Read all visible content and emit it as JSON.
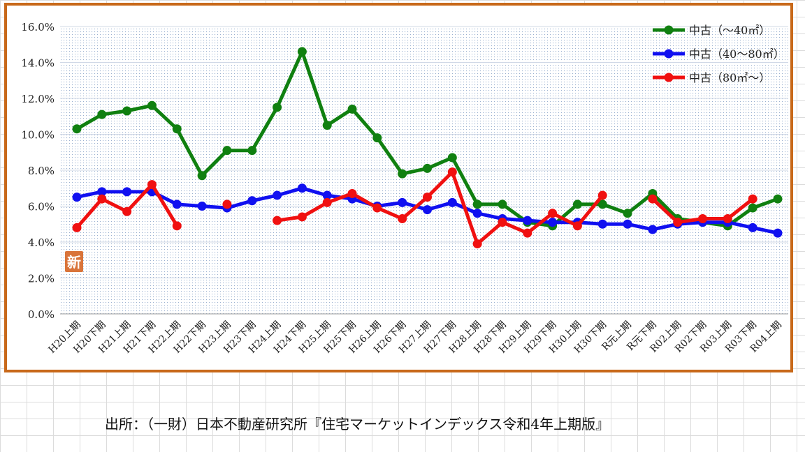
{
  "chart_data": {
    "type": "line",
    "x": [
      "H20上期",
      "H20下期",
      "H21上期",
      "H21下期",
      "H22上期",
      "H22下期",
      "H23上期",
      "H23下期",
      "H24上期",
      "H24下期",
      "H25上期",
      "H25下期",
      "H26上期",
      "H26下期",
      "H27上期",
      "H27下期",
      "H28上期",
      "H28下期",
      "H29上期",
      "H29下期",
      "H30上期",
      "H30下期",
      "R元上期",
      "R元下期",
      "R02上期",
      "R02下期",
      "R03上期",
      "R03下期",
      "R04上期"
    ],
    "ylim": [
      0,
      16
    ],
    "yticks": [
      "0.0%",
      "2.0%",
      "4.0%",
      "6.0%",
      "8.0%",
      "10.0%",
      "12.0%",
      "14.0%",
      "16.0%"
    ],
    "legend_position": "top-right",
    "series": [
      {
        "name": "中古（～40㎡）",
        "color": "#108010",
        "values": [
          10.3,
          11.1,
          11.3,
          11.6,
          10.3,
          7.7,
          9.1,
          9.1,
          11.5,
          14.6,
          10.5,
          11.4,
          9.8,
          7.8,
          8.1,
          8.7,
          6.1,
          6.1,
          5.1,
          4.9,
          6.1,
          6.1,
          5.6,
          6.7,
          5.3,
          5.1,
          4.9,
          5.9,
          6.4
        ]
      },
      {
        "name": "中古（40～80㎡）",
        "color": "#1010f0",
        "values": [
          6.5,
          6.8,
          6.8,
          6.8,
          6.1,
          6.0,
          5.9,
          6.3,
          6.6,
          7.0,
          6.6,
          6.4,
          6.0,
          6.2,
          5.8,
          6.2,
          5.6,
          5.3,
          5.2,
          5.1,
          5.1,
          5.0,
          5.0,
          4.7,
          5.0,
          5.1,
          5.1,
          4.8,
          4.5
        ]
      },
      {
        "name": "中古（80㎡～）",
        "color": "#f01010",
        "values": [
          4.8,
          6.4,
          5.7,
          7.2,
          4.9,
          null,
          6.1,
          null,
          5.2,
          5.4,
          6.2,
          6.7,
          5.9,
          5.3,
          6.5,
          7.9,
          3.9,
          5.1,
          4.5,
          5.6,
          4.9,
          6.6,
          null,
          6.4,
          5.1,
          5.3,
          5.3,
          6.4,
          null
        ]
      }
    ]
  },
  "badge": {
    "text": "新",
    "color": "#d9743a"
  },
  "source_note": "出所：（一財）日本不動産研究所『住宅マーケットインデックス令和4年上期版』"
}
